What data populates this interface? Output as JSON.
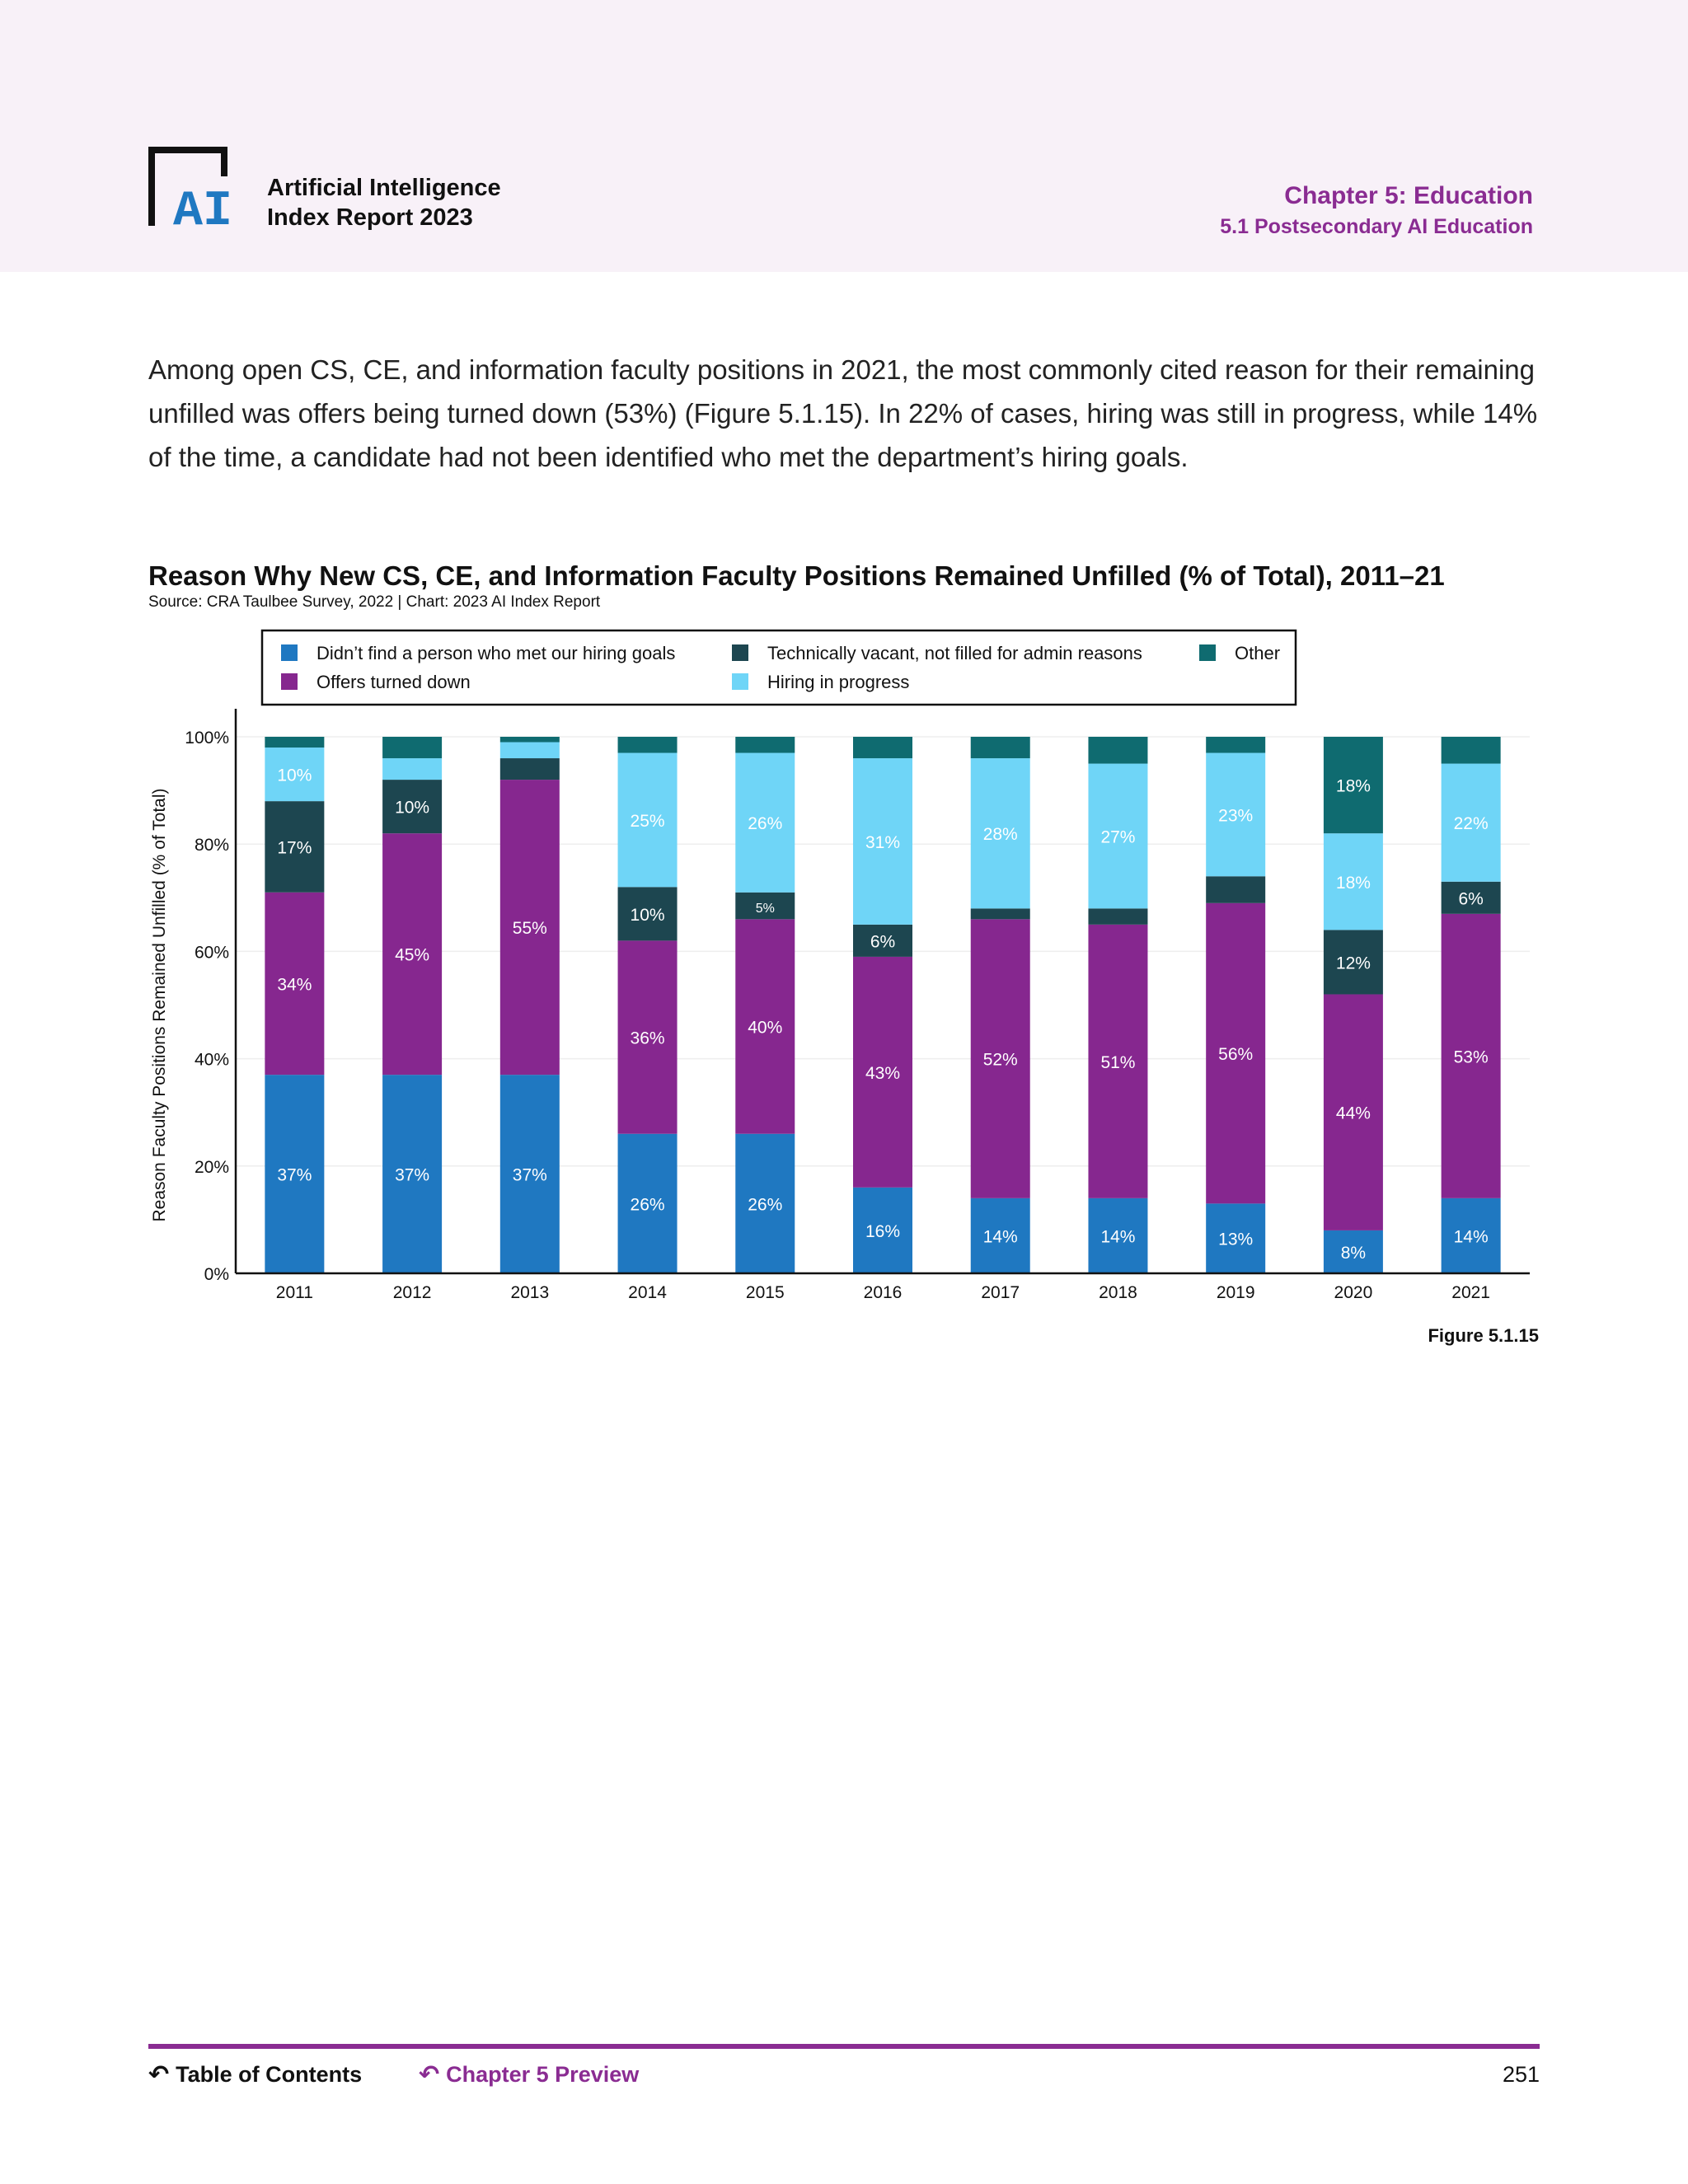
{
  "header": {
    "report_title_line1": "Artificial Intelligence",
    "report_title_line2": "Index Report 2023",
    "chapter": "Chapter 5: Education",
    "section": "5.1 Postsecondary AI Education",
    "logo_text": "AI"
  },
  "body_text": "Among open CS, CE, and information faculty positions in 2021, the most commonly cited reason for their remaining unfilled was offers being turned down (53%) (Figure 5.1.15). In 22% of cases, hiring was still in progress, while 14% of the time, a candidate had not been identified who met the department’s hiring goals.",
  "figure_label": "Figure 5.1.15",
  "footer": {
    "toc": "Table of Contents",
    "chapter_preview": "Chapter 5 Preview",
    "page_number": "251"
  },
  "colors": {
    "didnt_find": "#1f78c1",
    "offers_turned_down": "#86278f",
    "technically_vacant": "#1d4650",
    "hiring_in_progress": "#6fd5f7",
    "other": "#0f6b70",
    "accent": "#8a2c92"
  },
  "chart_data": {
    "type": "bar",
    "stacked": true,
    "title": "Reason Why New CS, CE, and Information Faculty Positions Remained Unfilled (% of Total), 2011–21",
    "source": "Source: CRA Taulbee Survey, 2022 | Chart: 2023 AI Index Report",
    "ylabel": "Reason Faculty Positions Remained Unfilled (% of Total)",
    "ylim": [
      0,
      100
    ],
    "yticks": [
      "0%",
      "20%",
      "40%",
      "60%",
      "80%",
      "100%"
    ],
    "legend_position": "top",
    "categories": [
      "2011",
      "2012",
      "2013",
      "2014",
      "2015",
      "2016",
      "2017",
      "2018",
      "2019",
      "2020",
      "2021"
    ],
    "series": [
      {
        "name": "Didn’t find a person who met our hiring goals",
        "color": "#1f78c1",
        "values": [
          37,
          37,
          37,
          26,
          26,
          16,
          14,
          14,
          13,
          8,
          14
        ],
        "labels": [
          "37%",
          "37%",
          "37%",
          "26%",
          "26%",
          "16%",
          "14%",
          "14%",
          "13%",
          "8%",
          "14%"
        ]
      },
      {
        "name": "Offers turned down",
        "color": "#86278f",
        "values": [
          34,
          45,
          55,
          36,
          40,
          43,
          52,
          51,
          56,
          44,
          53
        ],
        "labels": [
          "34%",
          "45%",
          "55%",
          "36%",
          "40%",
          "43%",
          "52%",
          "51%",
          "56%",
          "44%",
          "53%"
        ]
      },
      {
        "name": "Technically vacant, not filled for admin reasons",
        "color": "#1d4650",
        "values": [
          17,
          10,
          4,
          10,
          5,
          6,
          2,
          3,
          5,
          12,
          6
        ],
        "labels": [
          "17%",
          "10%",
          "",
          "10%",
          "5%",
          "6%",
          "",
          "",
          "",
          "12%",
          "6%"
        ]
      },
      {
        "name": "Hiring in progress",
        "color": "#6fd5f7",
        "values": [
          10,
          4,
          3,
          25,
          26,
          31,
          28,
          27,
          23,
          18,
          22
        ],
        "labels": [
          "10%",
          "",
          "",
          "25%",
          "26%",
          "31%",
          "28%",
          "27%",
          "23%",
          "18%",
          "22%"
        ]
      },
      {
        "name": "Other",
        "color": "#0f6b70",
        "values": [
          2,
          4,
          1,
          3,
          3,
          4,
          4,
          5,
          3,
          18,
          5
        ],
        "labels": [
          "",
          "",
          "",
          "",
          "",
          "",
          "",
          "",
          "",
          "18%",
          ""
        ]
      }
    ]
  }
}
